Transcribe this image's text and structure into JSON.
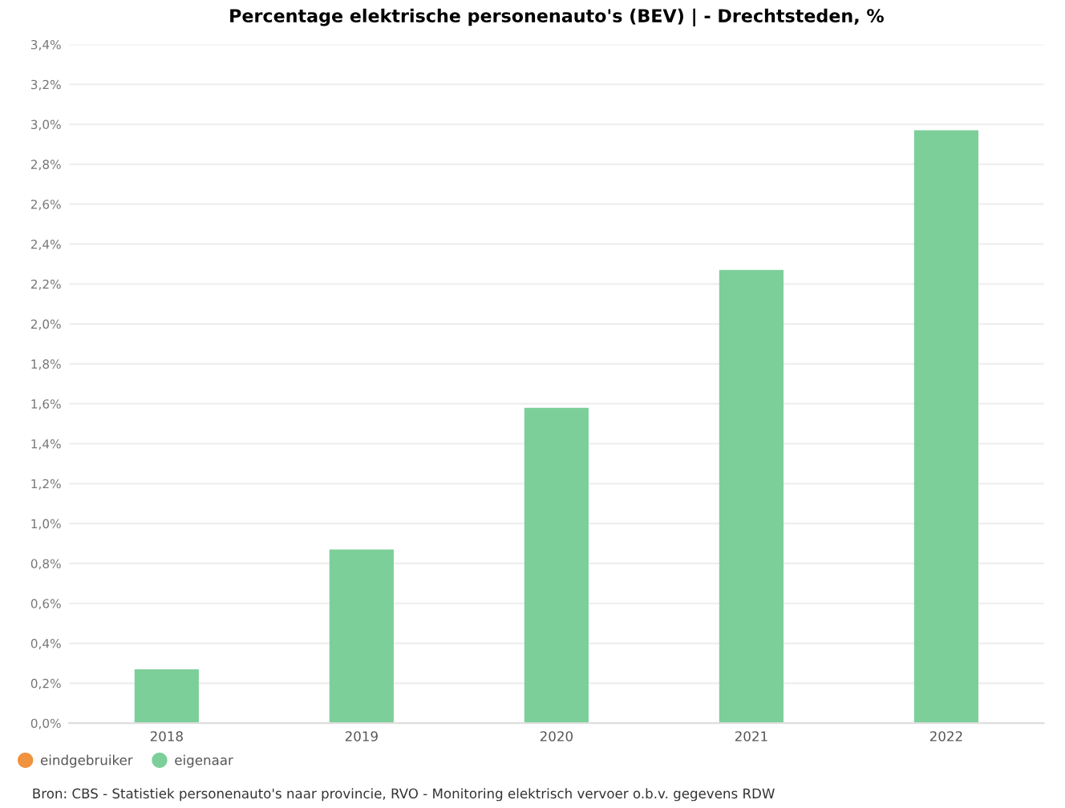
{
  "chart_data": {
    "type": "bar",
    "title": "Percentage elektrische personenauto's (BEV) | - Drechtsteden, %",
    "categories": [
      "2018",
      "2019",
      "2020",
      "2021",
      "2022"
    ],
    "series": [
      {
        "name": "eindgebruiker",
        "color": "#f0923e",
        "values": [
          null,
          null,
          null,
          null,
          null
        ]
      },
      {
        "name": "eigenaar",
        "color": "#7dcf9a",
        "values": [
          0.27,
          0.87,
          1.58,
          2.27,
          2.97
        ]
      }
    ],
    "ylim": [
      0,
      3.4
    ],
    "yticks": [
      {
        "value": 0,
        "label": "0,0%"
      },
      {
        "value": 0.2,
        "label": "0,2%"
      },
      {
        "value": 0.4,
        "label": "0,4%"
      },
      {
        "value": 0.6,
        "label": "0,6%"
      },
      {
        "value": 0.8,
        "label": "0,8%"
      },
      {
        "value": 1.0,
        "label": "1,0%"
      },
      {
        "value": 1.2,
        "label": "1,2%"
      },
      {
        "value": 1.4,
        "label": "1,4%"
      },
      {
        "value": 1.6,
        "label": "1,6%"
      },
      {
        "value": 1.8,
        "label": "1,8%"
      },
      {
        "value": 2.0,
        "label": "2,0%"
      },
      {
        "value": 2.2,
        "label": "2,2%"
      },
      {
        "value": 2.4,
        "label": "2,4%"
      },
      {
        "value": 2.6,
        "label": "2,6%"
      },
      {
        "value": 2.8,
        "label": "2,8%"
      },
      {
        "value": 3.0,
        "label": "3,0%"
      },
      {
        "value": 3.2,
        "label": "3,2%"
      },
      {
        "value": 3.4,
        "label": "3,4%"
      }
    ],
    "grid": "y",
    "legend": "bottom left",
    "annotations": [
      "Bron: CBS - Statistiek personenauto's naar provincie, RVO - Monitoring elektrisch vervoer o.b.v. gegevens RDW"
    ]
  }
}
